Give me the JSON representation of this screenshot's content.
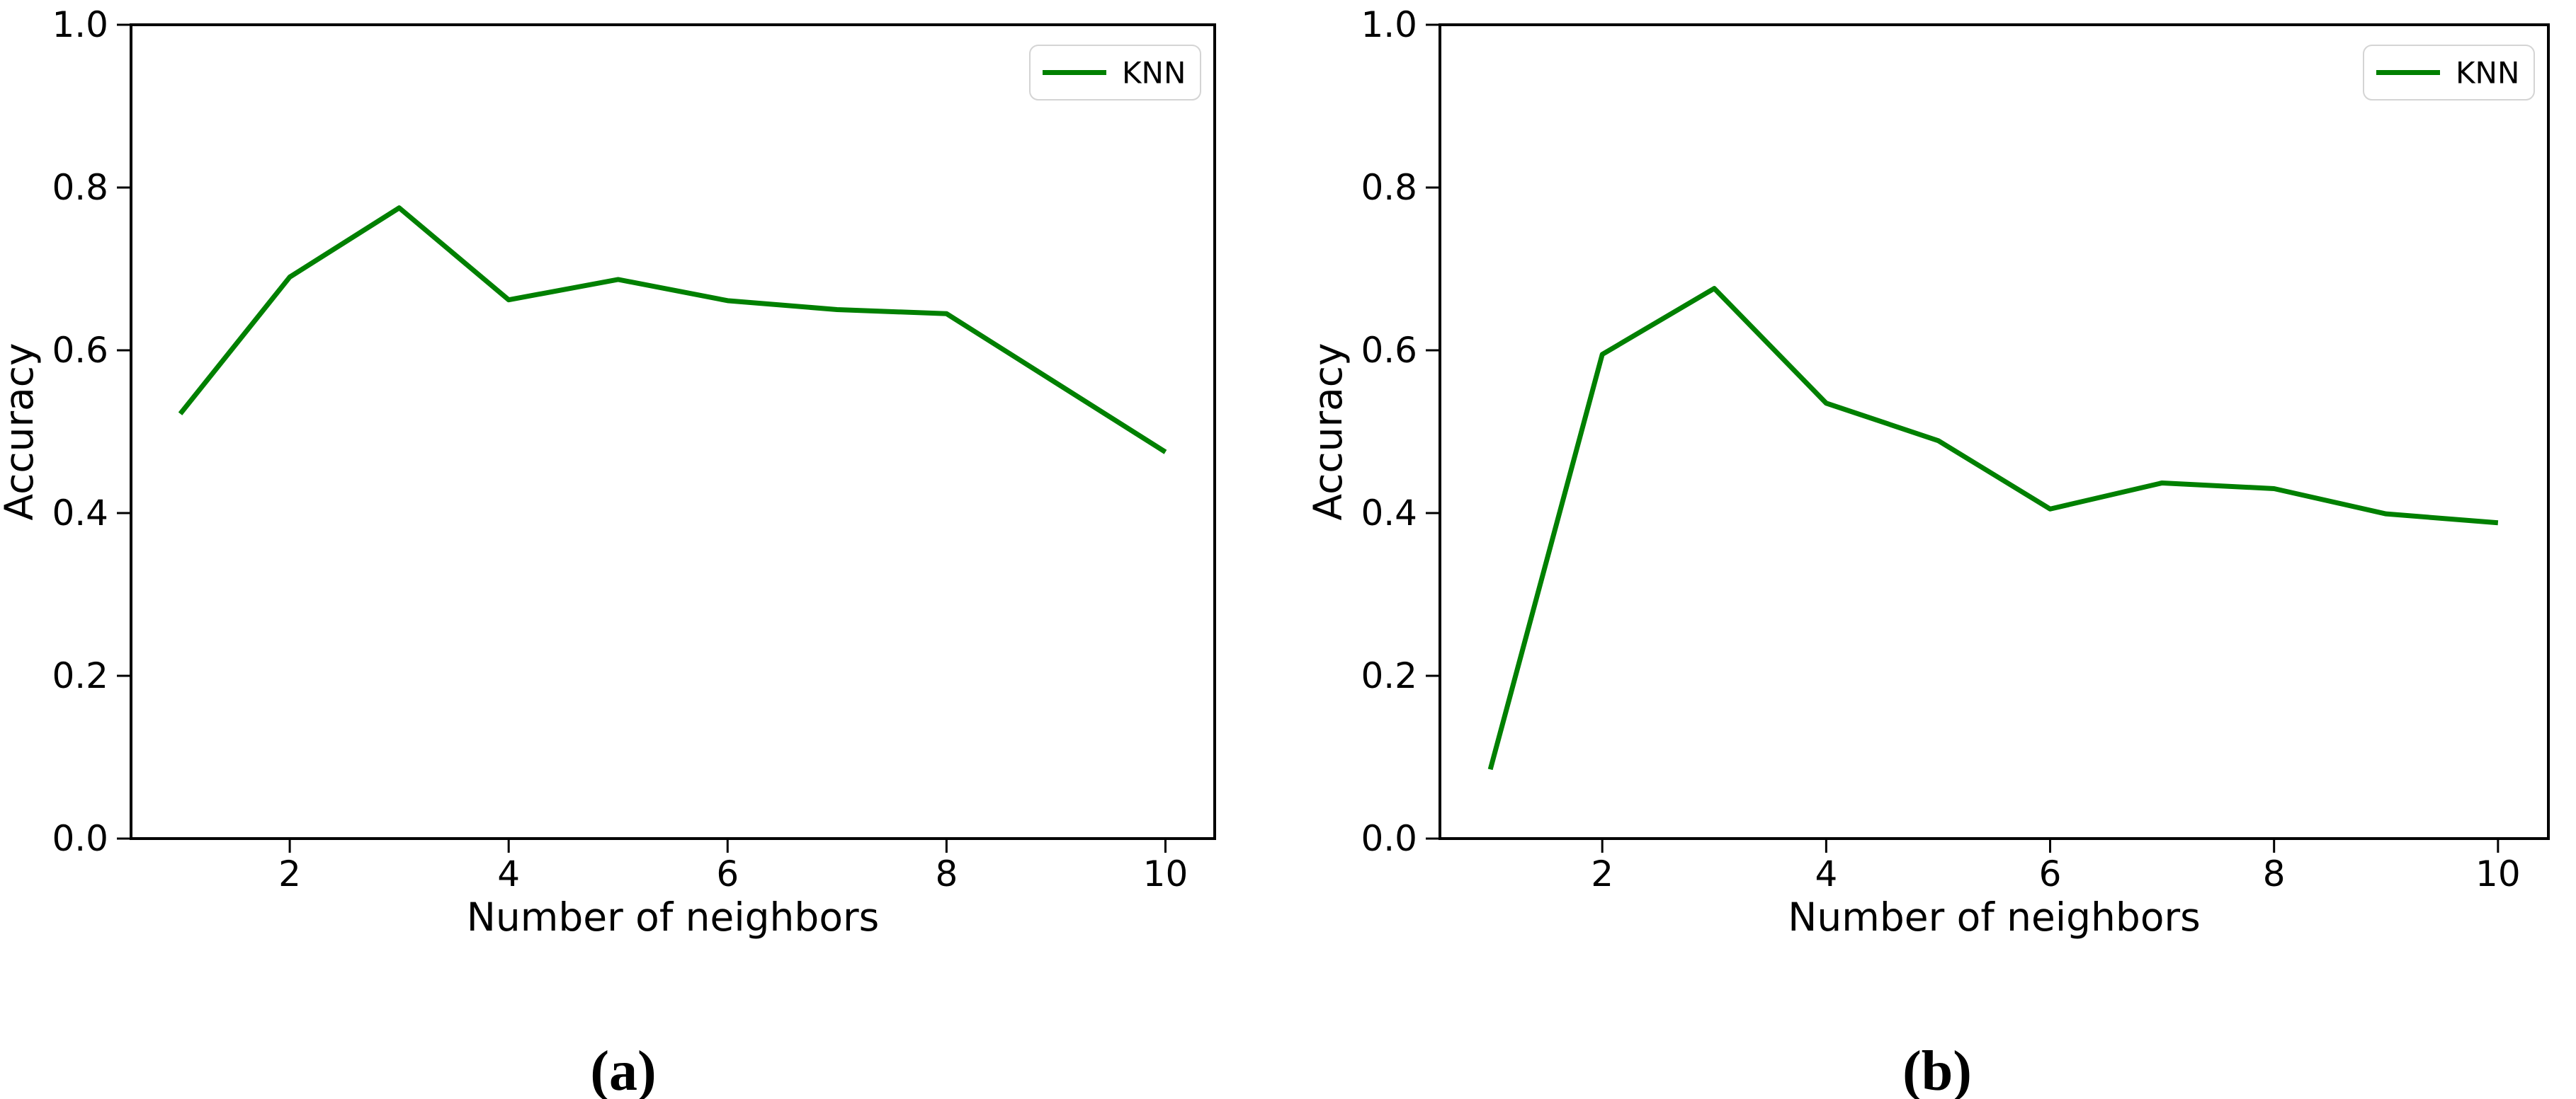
{
  "figure": {
    "background": "#ffffff",
    "axis_color": "#000000",
    "line_color": "#008000",
    "legend_border_color": "#d4d4d4"
  },
  "captions": {
    "a": "(a)",
    "b": "(b)"
  },
  "chart_data": [
    {
      "type": "line",
      "panel": "a",
      "title": "",
      "xlabel": "Number of neighbors",
      "ylabel": "Accuracy",
      "x": [
        1,
        2,
        3,
        4,
        5,
        6,
        7,
        8,
        9,
        10
      ],
      "series": [
        {
          "name": "KNN",
          "color": "#008000",
          "values": [
            0.522,
            0.69,
            0.775,
            0.662,
            0.687,
            0.661,
            0.65,
            0.645,
            0.56,
            0.475
          ]
        }
      ],
      "xlim": [
        0.55,
        10.45
      ],
      "ylim": [
        0.0,
        1.0
      ],
      "xtick_values": [
        2,
        4,
        6,
        8,
        10
      ],
      "xtick_labels": [
        "2",
        "4",
        "6",
        "8",
        "10"
      ],
      "ytick_values": [
        0.0,
        0.2,
        0.4,
        0.6,
        0.8,
        1.0
      ],
      "ytick_labels": [
        "0.0",
        "0.2",
        "0.4",
        "0.6",
        "0.8",
        "1.0"
      ],
      "grid": false,
      "legend": {
        "label": "KNN",
        "position": "upper right"
      }
    },
    {
      "type": "line",
      "panel": "b",
      "title": "",
      "xlabel": "Number of neighbors",
      "ylabel": "Accuracy",
      "x": [
        1,
        2,
        3,
        4,
        5,
        6,
        7,
        8,
        9,
        10
      ],
      "series": [
        {
          "name": "KNN",
          "color": "#008000",
          "values": [
            0.085,
            0.595,
            0.676,
            0.535,
            0.489,
            0.405,
            0.437,
            0.43,
            0.399,
            0.388
          ]
        }
      ],
      "xlim": [
        0.55,
        10.45
      ],
      "ylim": [
        0.0,
        1.0
      ],
      "xtick_values": [
        2,
        4,
        6,
        8,
        10
      ],
      "xtick_labels": [
        "2",
        "4",
        "6",
        "8",
        "10"
      ],
      "ytick_values": [
        0.0,
        0.2,
        0.4,
        0.6,
        0.8,
        1.0
      ],
      "ytick_labels": [
        "0.0",
        "0.2",
        "0.4",
        "0.6",
        "0.8",
        "1.0"
      ],
      "grid": false,
      "legend": {
        "label": "KNN",
        "position": "upper right"
      }
    }
  ]
}
